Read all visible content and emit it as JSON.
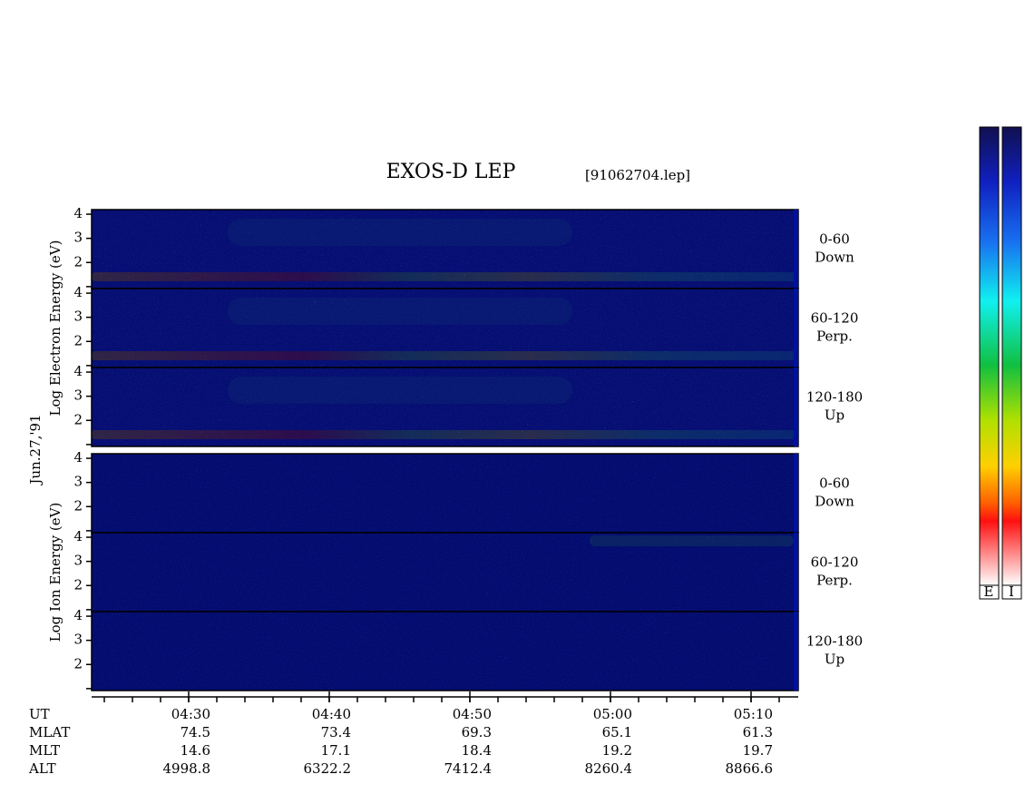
{
  "chart_data": {
    "type": "spectrogram",
    "title": "EXOS-D LEP",
    "file": "[91062704.lep]",
    "date_label": "Jun.27,'91",
    "ylim": [
      0.92,
      4.19
    ],
    "yticks": [
      1,
      2,
      3,
      4
    ],
    "ytick_labels": [
      null,
      "2",
      "3",
      "4"
    ],
    "groups": [
      {
        "y_label": "Log Electron Energy (eV)",
        "panels": [
          [
            "0-60",
            "Down"
          ],
          [
            "60-120",
            "Perp."
          ],
          [
            "120-180",
            "Up"
          ]
        ]
      },
      {
        "y_label": "Log Ion Energy (eV)",
        "panels": [
          [
            "0-60",
            "Down"
          ],
          [
            "60-120",
            "Perp."
          ],
          [
            "120-180",
            "Up"
          ]
        ]
      }
    ],
    "x": [
      "04:30",
      "04:40",
      "04:50",
      "05:00",
      "05:10"
    ],
    "ephemeris": {
      "row_labels": [
        "UT",
        "MLAT",
        "MLT",
        "ALT"
      ],
      "MLAT": [
        74.5,
        73.4,
        69.3,
        65.1,
        61.3
      ],
      "MLT": [
        14.6,
        17.1,
        18.4,
        19.2,
        19.7
      ],
      "ALT": [
        4998.8,
        6322.2,
        7412.4,
        8260.4,
        8866.6
      ]
    },
    "colorbar_labels": [
      "E",
      "I"
    ]
  }
}
